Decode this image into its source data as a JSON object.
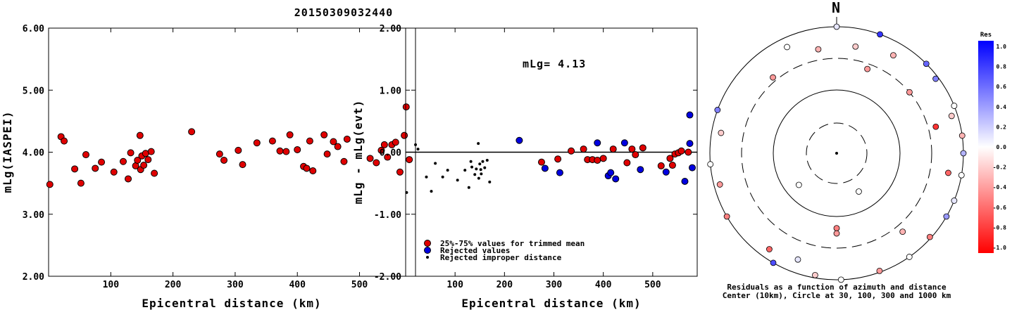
{
  "title": "20150309032440",
  "chart_data": [
    {
      "type": "scatter",
      "name": "mlg-vs-distance",
      "xlabel": "Epicentral distance (km)",
      "ylabel": "mLg(IASPEI)",
      "xlim": [
        0,
        590
      ],
      "ylim": [
        2.0,
        6.0
      ],
      "xticks": [
        100,
        200,
        300,
        400,
        500
      ],
      "yticks": [
        "2.00",
        "3.00",
        "4.00",
        "5.00",
        "6.00"
      ],
      "points": [
        [
          2,
          3.48
        ],
        [
          20,
          4.25
        ],
        [
          25,
          4.18
        ],
        [
          42,
          3.73
        ],
        [
          52,
          3.5
        ],
        [
          60,
          3.96
        ],
        [
          75,
          3.74
        ],
        [
          85,
          3.84
        ],
        [
          105,
          3.68
        ],
        [
          120,
          3.85
        ],
        [
          128,
          3.57
        ],
        [
          132,
          3.99
        ],
        [
          140,
          3.78
        ],
        [
          143,
          3.87
        ],
        [
          147,
          4.27
        ],
        [
          148,
          3.72
        ],
        [
          150,
          3.94
        ],
        [
          153,
          3.79
        ],
        [
          156,
          3.98
        ],
        [
          160,
          3.88
        ],
        [
          165,
          4.01
        ],
        [
          170,
          3.66
        ],
        [
          230,
          4.33
        ],
        [
          275,
          3.97
        ],
        [
          282,
          3.87
        ],
        [
          305,
          4.03
        ],
        [
          312,
          3.8
        ],
        [
          335,
          4.15
        ],
        [
          360,
          4.18
        ],
        [
          372,
          4.02
        ],
        [
          382,
          4.01
        ],
        [
          388,
          4.28
        ],
        [
          400,
          4.04
        ],
        [
          410,
          3.77
        ],
        [
          415,
          3.74
        ],
        [
          420,
          4.18
        ],
        [
          425,
          3.7
        ],
        [
          443,
          4.28
        ],
        [
          448,
          3.97
        ],
        [
          458,
          4.17
        ],
        [
          465,
          4.09
        ],
        [
          475,
          3.85
        ],
        [
          480,
          4.21
        ],
        [
          517,
          3.9
        ],
        [
          527,
          3.83
        ],
        [
          535,
          4.03
        ],
        [
          540,
          4.12
        ],
        [
          545,
          3.92
        ],
        [
          552,
          4.12
        ],
        [
          558,
          4.16
        ],
        [
          565,
          3.68
        ],
        [
          572,
          4.27
        ],
        [
          575,
          4.73
        ],
        [
          580,
          3.88
        ]
      ]
    },
    {
      "type": "scatter",
      "name": "residual-vs-distance",
      "xlabel": "Epicentral distance (km)",
      "ylabel": "mLg - mLg(evt)",
      "annotation": "mLg= 4.13",
      "xlim": [
        0,
        590
      ],
      "ylim": [
        -2.0,
        2.0
      ],
      "xticks": [
        100,
        200,
        300,
        400,
        500
      ],
      "yticks": [
        "-2.00",
        "-1.00",
        "0.00",
        "1.00",
        "2.00"
      ],
      "series": [
        {
          "name": "25%-75% values for trimmed mean",
          "color": "#e00000",
          "points": [
            [
              275,
              -0.16
            ],
            [
              308,
              -0.11
            ],
            [
              335,
              0.02
            ],
            [
              360,
              0.05
            ],
            [
              368,
              -0.12
            ],
            [
              378,
              -0.12
            ],
            [
              388,
              -0.13
            ],
            [
              400,
              -0.1
            ],
            [
              420,
              0.05
            ],
            [
              448,
              -0.17
            ],
            [
              458,
              0.05
            ],
            [
              465,
              -0.04
            ],
            [
              480,
              0.07
            ],
            [
              517,
              -0.22
            ],
            [
              535,
              -0.1
            ],
            [
              540,
              -0.21
            ],
            [
              545,
              -0.03
            ],
            [
              552,
              -0.01
            ],
            [
              558,
              0.02
            ],
            [
              572,
              0.0
            ]
          ]
        },
        {
          "name": "Rejected values",
          "color": "#0000e0",
          "points": [
            [
              230,
              0.19
            ],
            [
              282,
              -0.26
            ],
            [
              312,
              -0.33
            ],
            [
              388,
              0.15
            ],
            [
              410,
              -0.38
            ],
            [
              415,
              -0.33
            ],
            [
              425,
              -0.43
            ],
            [
              443,
              0.15
            ],
            [
              475,
              -0.28
            ],
            [
              527,
              -0.32
            ],
            [
              565,
              -0.47
            ],
            [
              575,
              0.14
            ],
            [
              575,
              0.6
            ],
            [
              580,
              -0.25
            ]
          ]
        },
        {
          "name": "Rejected improper distance",
          "color": "#000000",
          "points": [
            [
              2,
              -0.65
            ],
            [
              20,
              0.12
            ],
            [
              25,
              0.05
            ],
            [
              42,
              -0.4
            ],
            [
              52,
              -0.63
            ],
            [
              60,
              -0.18
            ],
            [
              75,
              -0.4
            ],
            [
              85,
              -0.29
            ],
            [
              105,
              -0.45
            ],
            [
              120,
              -0.29
            ],
            [
              128,
              -0.57
            ],
            [
              132,
              -0.15
            ],
            [
              140,
              -0.36
            ],
            [
              143,
              -0.27
            ],
            [
              147,
              0.14
            ],
            [
              148,
              -0.42
            ],
            [
              150,
              -0.19
            ],
            [
              153,
              -0.35
            ],
            [
              156,
              -0.15
            ],
            [
              160,
              -0.25
            ],
            [
              165,
              -0.13
            ],
            [
              170,
              -0.48
            ],
            [
              134,
              -0.24
            ],
            [
              152,
              -0.28
            ]
          ]
        }
      ]
    },
    {
      "type": "polar",
      "name": "azimuthal-residuals",
      "north_label": "N",
      "caption_line1": "Residuals as a function of azimuth and distance",
      "caption_line2": "Center (10km), Circle at 30, 100, 300 and 1000 km",
      "rings_km": [
        30,
        100,
        300,
        1000
      ],
      "colorbar": {
        "title": "Res",
        "ticks": [
          "1.0",
          "0.8",
          "0.6",
          "0.4",
          "0.2",
          "0.0",
          "-0.2",
          "-0.4",
          "-0.6",
          "-0.8",
          "-1.0"
        ],
        "positive_color": "#0000ff",
        "negative_color": "#ff0000"
      },
      "stations": [
        {
          "az": 0,
          "dist_km": 1000,
          "res": 0.1
        },
        {
          "az": 20,
          "dist_km": 1000,
          "res": 0.8
        },
        {
          "az": 45,
          "dist_km": 1000,
          "res": 0.6
        },
        {
          "az": 53,
          "dist_km": 900,
          "res": 0.5
        },
        {
          "az": 68,
          "dist_km": 1000,
          "res": 0.0
        },
        {
          "az": 72,
          "dist_km": 800,
          "res": -0.2
        },
        {
          "az": 82,
          "dist_km": 1000,
          "res": -0.3
        },
        {
          "az": 90,
          "dist_km": 1000,
          "res": 0.3
        },
        {
          "az": 100,
          "dist_km": 1000,
          "res": 0.0
        },
        {
          "az": 112,
          "dist_km": 1000,
          "res": 0.1
        },
        {
          "az": 120,
          "dist_km": 1000,
          "res": 0.4
        },
        {
          "az": 132,
          "dist_km": 950,
          "res": -0.5
        },
        {
          "az": 145,
          "dist_km": 1000,
          "res": 0.0
        },
        {
          "az": 160,
          "dist_km": 950,
          "res": -0.4
        },
        {
          "az": 178,
          "dist_km": 1000,
          "res": 0.0
        },
        {
          "az": 190,
          "dist_km": 900,
          "res": -0.2
        },
        {
          "az": 210,
          "dist_km": 1000,
          "res": 0.7
        },
        {
          "az": 240,
          "dist_km": 1000,
          "res": -0.5
        },
        {
          "az": 265,
          "dist_km": 1000,
          "res": 0.0
        },
        {
          "az": 290,
          "dist_km": 1000,
          "res": 0.5
        },
        {
          "az": 335,
          "dist_km": 700,
          "res": 0.0
        },
        {
          "az": 20,
          "dist_km": 250,
          "res": -0.4
        },
        {
          "az": 50,
          "dist_km": 300,
          "res": -0.4
        },
        {
          "az": 75,
          "dist_km": 400,
          "res": -0.8
        },
        {
          "az": 100,
          "dist_km": 600,
          "res": -0.6
        },
        {
          "az": 140,
          "dist_km": 400,
          "res": -0.3
        },
        {
          "az": 180,
          "dist_km": 150,
          "res": -0.5
        },
        {
          "az": 180,
          "dist_km": 180,
          "res": -0.4
        },
        {
          "az": 200,
          "dist_km": 600,
          "res": 0.1
        },
        {
          "az": 230,
          "dist_km": 60,
          "res": 0.0
        },
        {
          "az": 215,
          "dist_km": 700,
          "res": -0.6
        },
        {
          "az": 255,
          "dist_km": 800,
          "res": -0.4
        },
        {
          "az": 280,
          "dist_km": 700,
          "res": -0.2
        },
        {
          "az": 320,
          "dist_km": 350,
          "res": -0.4
        },
        {
          "az": 350,
          "dist_km": 450,
          "res": -0.3
        },
        {
          "az": 10,
          "dist_km": 500,
          "res": -0.2
        },
        {
          "az": 30,
          "dist_km": 600,
          "res": -0.3
        },
        {
          "az": 150,
          "dist_km": 50,
          "res": 0.0
        }
      ]
    }
  ]
}
